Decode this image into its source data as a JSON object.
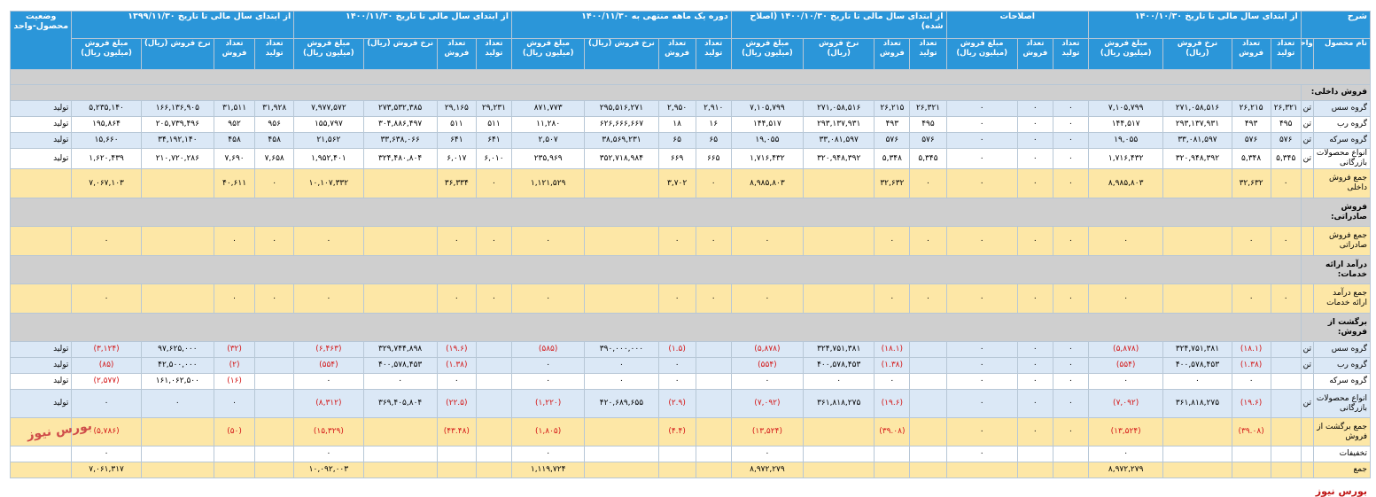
{
  "header1": {
    "desc": "شرح",
    "g1": "از ابتدای سال مالی تا تاریخ ۱۴۰۰/۱۰/۳۰",
    "g2": "اصلاحات",
    "g3": "از ابتدای سال مالی تا تاریخ ۱۴۰۰/۱۰/۳۰ (اصلاح شده)",
    "g4": "دوره یک ماهه منتهی به ۱۴۰۰/۱۱/۳۰",
    "g5": "از ابتدای سال مالی تا تاریخ ۱۴۰۰/۱۱/۳۰",
    "g6": "از ابتدای سال مالی تا تاریخ ۱۳۹۹/۱۱/۳۰",
    "status": "وضعیت محصول-واحد"
  },
  "header2": {
    "product": "نام محصول",
    "unit": "واحد",
    "prod": "تعداد تولید",
    "sales": "تعداد فروش",
    "rate": "نرخ فروش (ریال)",
    "amount": "مبلغ فروش (میلیون ریال)"
  },
  "rows": [
    {
      "type": "sec",
      "label": "فروش داخلی:"
    },
    {
      "type": "blue",
      "label": "گروه سس",
      "unit": "تن",
      "c": [
        "۲۶,۳۲۱",
        "۲۶,۲۱۵",
        "۲۷۱,۰۵۸,۵۱۶",
        "۷,۱۰۵,۷۹۹",
        "۰",
        "۰",
        "۰",
        "۲۶,۳۲۱",
        "۲۶,۲۱۵",
        "۲۷۱,۰۵۸,۵۱۶",
        "۷,۱۰۵,۷۹۹",
        "۲,۹۱۰",
        "۲,۹۵۰",
        "۲۹۵,۵۱۶,۲۷۱",
        "۸۷۱,۷۷۳",
        "۲۹,۲۳۱",
        "۲۹,۱۶۵",
        "۲۷۳,۵۳۲,۳۸۵",
        "۷,۹۷۷,۵۷۲",
        "۳۱,۹۲۸",
        "۳۱,۵۱۱",
        "۱۶۶,۱۳۶,۹۰۵",
        "۵,۲۳۵,۱۴۰"
      ],
      "status": "تولید"
    },
    {
      "type": "white",
      "label": "گروه رب",
      "unit": "تن",
      "c": [
        "۴۹۵",
        "۴۹۳",
        "۲۹۳,۱۳۷,۹۳۱",
        "۱۴۴,۵۱۷",
        "۰",
        "۰",
        "۰",
        "۴۹۵",
        "۴۹۳",
        "۲۹۳,۱۳۷,۹۳۱",
        "۱۴۴,۵۱۷",
        "۱۶",
        "۱۸",
        "۶۲۶,۶۶۶,۶۶۷",
        "۱۱,۲۸۰",
        "۵۱۱",
        "۵۱۱",
        "۳۰۴,۸۸۶,۴۹۷",
        "۱۵۵,۷۹۷",
        "۹۵۶",
        "۹۵۲",
        "۲۰۵,۷۳۹,۴۹۶",
        "۱۹۵,۸۶۴"
      ],
      "status": "تولید"
    },
    {
      "type": "blue",
      "label": "گروه سرکه",
      "unit": "تن",
      "c": [
        "۵۷۶",
        "۵۷۶",
        "۳۳,۰۸۱,۵۹۷",
        "۱۹,۰۵۵",
        "۰",
        "۰",
        "۰",
        "۵۷۶",
        "۵۷۶",
        "۳۳,۰۸۱,۵۹۷",
        "۱۹,۰۵۵",
        "۶۵",
        "۶۵",
        "۳۸,۵۶۹,۲۳۱",
        "۲,۵۰۷",
        "۶۴۱",
        "۶۴۱",
        "۳۳,۶۳۸,۰۶۶",
        "۲۱,۵۶۲",
        "۴۵۸",
        "۴۵۸",
        "۳۴,۱۹۲,۱۴۰",
        "۱۵,۶۶۰"
      ],
      "status": "تولید"
    },
    {
      "type": "white",
      "label": "انواع محصولات بازرگانی",
      "unit": "تن",
      "c": [
        "۵,۳۴۵",
        "۵,۳۴۸",
        "۳۲۰,۹۴۸,۳۹۲",
        "۱,۷۱۶,۴۳۲",
        "۰",
        "۰",
        "۰",
        "۵,۳۴۵",
        "۵,۳۴۸",
        "۳۲۰,۹۴۸,۳۹۲",
        "۱,۷۱۶,۴۳۲",
        "۶۶۵",
        "۶۶۹",
        "۳۵۲,۷۱۸,۹۸۴",
        "۲۳۵,۹۶۹",
        "۶,۰۱۰",
        "۶,۰۱۷",
        "۳۲۴,۴۸۰,۸۰۴",
        "۱,۹۵۲,۴۰۱",
        "۷,۶۵۸",
        "۷,۶۹۰",
        "۲۱۰,۷۲۰,۲۸۶",
        "۱,۶۲۰,۴۳۹"
      ],
      "status": "تولید"
    },
    {
      "type": "tot",
      "h": "r34",
      "label": "جمع فروش داخلی",
      "unit": "",
      "c": [
        "۰",
        "۳۲,۶۳۲",
        "",
        "۸,۹۸۵,۸۰۳",
        "۰",
        "۰",
        "۰",
        "۰",
        "۳۲,۶۳۲",
        "",
        "۸,۹۸۵,۸۰۳",
        "۰",
        "۳,۷۰۲",
        "",
        "۱,۱۲۱,۵۲۹",
        "۰",
        "۳۶,۳۳۴",
        "",
        "۱۰,۱۰۷,۳۳۲",
        "۰",
        "۴۰,۶۱۱",
        "",
        "۷,۰۶۷,۱۰۳"
      ],
      "status": ""
    },
    {
      "type": "sec",
      "h": "r32",
      "label": "فروش صادراتی:"
    },
    {
      "type": "tot",
      "h": "r34",
      "label": "جمع فروش صادراتی",
      "unit": "",
      "c": [
        "۰",
        "۰",
        "",
        "۰",
        "۰",
        "۰",
        "۰",
        "۰",
        "۰",
        "",
        "۰",
        "۰",
        "۰",
        "",
        "۰",
        "۰",
        "۰",
        "",
        "۰",
        "۰",
        "۰",
        "",
        "۰"
      ],
      "status": ""
    },
    {
      "type": "sec",
      "h": "r32",
      "label": "درآمد ارائه خدمات:"
    },
    {
      "type": "tot",
      "h": "r34",
      "label": "جمع درآمد ارائه خدمات",
      "unit": "",
      "c": [
        "۰",
        "۰",
        "",
        "۰",
        "۰",
        "۰",
        "۰",
        "۰",
        "۰",
        "",
        "۰",
        "۰",
        "۰",
        "",
        "۰",
        "۰",
        "۰",
        "",
        "۰",
        "۰",
        "۰",
        "",
        "۰"
      ],
      "status": ""
    },
    {
      "type": "sec",
      "h": "r32",
      "label": "برگشت از فروش:"
    },
    {
      "type": "blue",
      "label": "گروه سس",
      "unit": "تن",
      "c": [
        "",
        "(۱۸.۱)",
        "۳۲۴,۷۵۱,۳۸۱",
        "(۵,۸۷۸)",
        "۰",
        "۰",
        "۰",
        "",
        "(۱۸.۱)",
        "۳۲۴,۷۵۱,۳۸۱",
        "(۵,۸۷۸)",
        "",
        "(۱.۵)",
        "۳۹۰,۰۰۰,۰۰۰",
        "(۵۸۵)",
        "",
        "(۱۹.۶)",
        "۳۲۹,۷۴۴,۸۹۸",
        "(۶,۴۶۳)",
        "",
        "(۳۲)",
        "۹۷,۶۲۵,۰۰۰",
        "(۳,۱۲۴)"
      ],
      "status": "تولید"
    },
    {
      "type": "blue",
      "label": "گروه رب",
      "unit": "تن",
      "c": [
        "",
        "(۱.۳۸)",
        "۴۰۰,۵۷۸,۴۵۳",
        "(۵۵۴)",
        "۰",
        "۰",
        "۰",
        "",
        "(۱.۳۸)",
        "۴۰۰,۵۷۸,۴۵۳",
        "(۵۵۴)",
        "",
        "۰",
        "۰",
        "۰",
        "",
        "(۱.۳۸)",
        "۴۰۰,۵۷۸,۴۵۳",
        "(۵۵۴)",
        "",
        "(۲)",
        "۴۲,۵۰۰,۰۰۰",
        "(۸۵)"
      ],
      "status": "تولید"
    },
    {
      "type": "white",
      "label": "گروه سرکه",
      "unit": "",
      "c": [
        "",
        "۰",
        "۰",
        "۰",
        "۰",
        "۰",
        "۰",
        "",
        "۰",
        "۰",
        "۰",
        "",
        "۰",
        "۰",
        "۰",
        "",
        "۰",
        "۰",
        "۰",
        "",
        "(۱۶)",
        "۱۶۱,۰۶۲,۵۰۰",
        "(۲,۵۷۷)"
      ],
      "status": "تولید"
    },
    {
      "type": "blue",
      "h": "r32",
      "label": "انواع محصولات بازرگانی",
      "unit": "تن",
      "c": [
        "",
        "(۱۹.۶)",
        "۳۶۱,۸۱۸,۲۷۵",
        "(۷,۰۹۲)",
        "۰",
        "۰",
        "۰",
        "",
        "(۱۹.۶)",
        "۳۶۱,۸۱۸,۲۷۵",
        "(۷,۰۹۲)",
        "",
        "(۲.۹)",
        "۴۲۰,۶۸۹,۶۵۵",
        "(۱,۲۲۰)",
        "",
        "(۲۲.۵)",
        "۳۶۹,۴۰۵,۸۰۴",
        "(۸,۳۱۲)",
        "",
        "۰",
        "۰",
        "۰"
      ],
      "status": "تولید"
    },
    {
      "type": "tot",
      "h": "r32",
      "label": "جمع برگشت از فروش",
      "unit": "",
      "c": [
        "",
        "(۳۹.۰۸)",
        "",
        "(۱۳,۵۲۴)",
        "۰",
        "۰",
        "۰",
        "",
        "(۳۹.۰۸)",
        "",
        "(۱۳,۵۲۴)",
        "",
        "(۴.۴)",
        "",
        "(۱,۸۰۵)",
        "",
        "(۴۳.۴۸)",
        "",
        "(۱۵,۳۲۹)",
        "",
        "(۵۰)",
        "",
        "(۵,۷۸۶)"
      ],
      "status": ""
    },
    {
      "type": "white",
      "label": "تخفیفات",
      "unit": "",
      "c": [
        "",
        "",
        "",
        "۰",
        "",
        "",
        "۰",
        "",
        "",
        "",
        "۰",
        "",
        "",
        "",
        "۰",
        "",
        "",
        "",
        "۰",
        "",
        "",
        "",
        "۰"
      ],
      "status": ""
    },
    {
      "type": "tot",
      "label": "جمع",
      "unit": "",
      "c": [
        "",
        "",
        "",
        "۸,۹۷۲,۲۷۹",
        "",
        "",
        "",
        "",
        "",
        "",
        "۸,۹۷۲,۲۷۹",
        "",
        "",
        "",
        "۱,۱۱۹,۷۲۴",
        "",
        "",
        "",
        "۱۰,۰۹۲,۰۰۳",
        "",
        "",
        "",
        "۷,۰۶۱,۳۱۷"
      ],
      "status": ""
    }
  ],
  "watermark": "بورس نیوز",
  "logo": "بورس نیوز"
}
